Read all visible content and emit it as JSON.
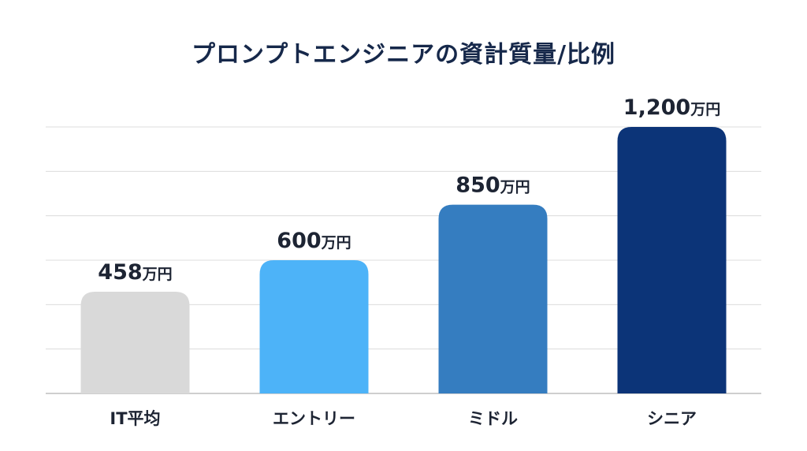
{
  "chart_data": {
    "type": "bar",
    "title": "プロンプトエンジニアの資計質量/比例",
    "categories": [
      "IT平均",
      "エントリー",
      "ミドル",
      "シニア"
    ],
    "values": [
      458,
      600,
      850,
      1200
    ],
    "value_labels": [
      {
        "number": "458",
        "unit": "万円"
      },
      {
        "number": "600",
        "unit": "万円"
      },
      {
        "number": "850",
        "unit": "万円"
      },
      {
        "number": "1,200",
        "unit": "万円"
      }
    ],
    "ylim": [
      0,
      1200
    ],
    "grid": true,
    "colors": [
      "#d9d9d9",
      "#4db3f8",
      "#357dc0",
      "#0c3478"
    ]
  }
}
